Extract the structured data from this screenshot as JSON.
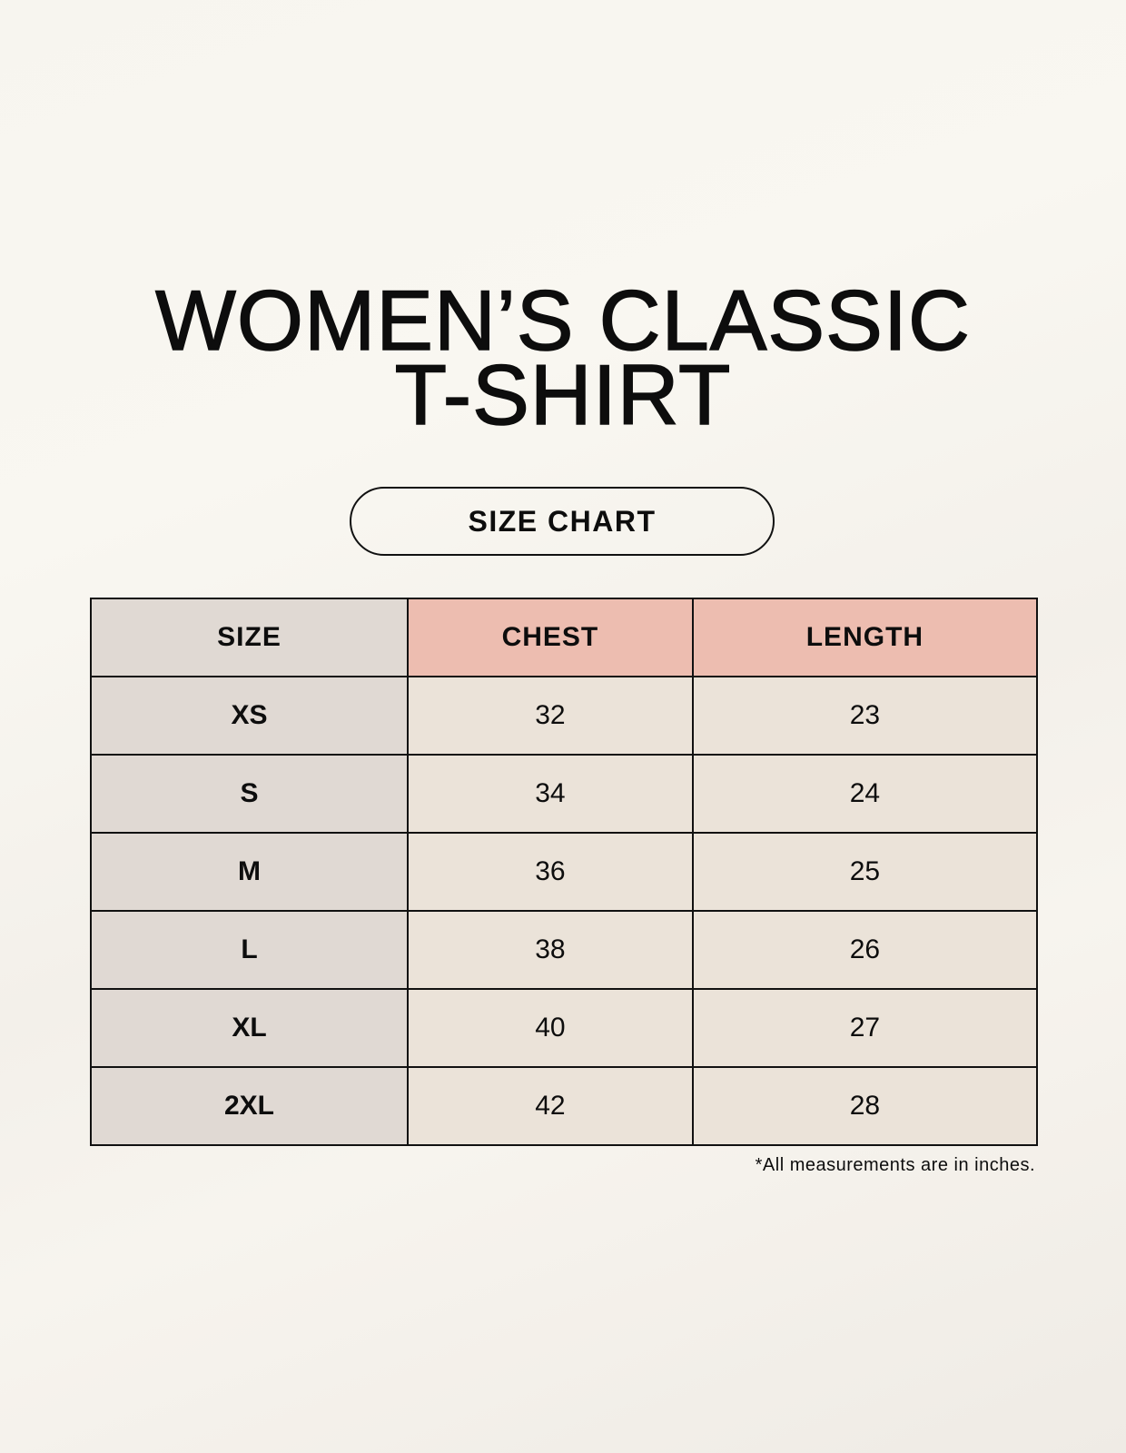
{
  "title": {
    "line1": "WOMEN’S CLASSIC",
    "line2": "T-SHIRT"
  },
  "badge": "SIZE CHART",
  "table": {
    "headers": [
      "SIZE",
      "CHEST",
      "LENGTH"
    ],
    "rows": [
      [
        "XS",
        "32",
        "23"
      ],
      [
        "S",
        "34",
        "24"
      ],
      [
        "M",
        "36",
        "25"
      ],
      [
        "L",
        "38",
        "26"
      ],
      [
        "XL",
        "40",
        "27"
      ],
      [
        "2XL",
        "42",
        "28"
      ]
    ]
  },
  "footnote": "*All measurements are in inches.",
  "colors": {
    "size_column": "#e0d9d3",
    "header_accent": "#edbdb0",
    "value_cells": "#ebe3d9"
  }
}
